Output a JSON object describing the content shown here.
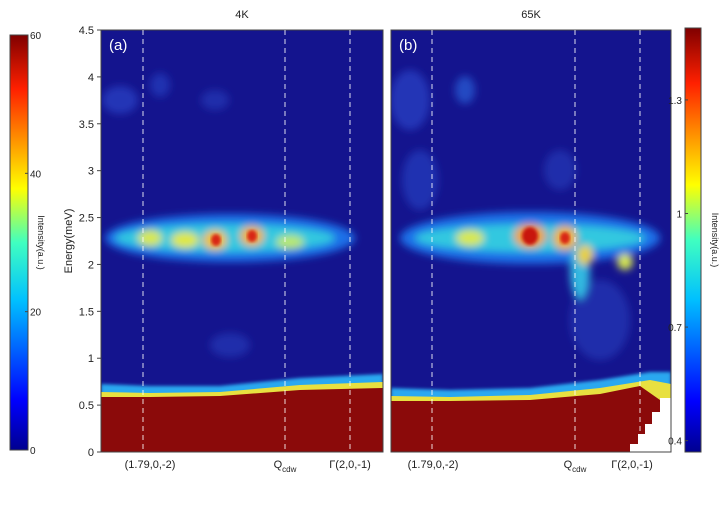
{
  "chart_data": [
    {
      "type": "heatmap",
      "title": "4K",
      "annotation": "(a)",
      "ylabel": "Energy(meV)",
      "ylim": [
        0,
        4.5
      ],
      "yticks": [
        0,
        0.5,
        1,
        1.5,
        2,
        2.5,
        3,
        3.5,
        4,
        4.5
      ],
      "x_labels": [
        "(1.79,0,-2)",
        {
          "main": "Q",
          "sub": "cdw"
        },
        "Γ(2,0,-1)"
      ],
      "colorbar": {
        "label": "Intensity(a.u.)",
        "lim": [
          0,
          60
        ],
        "ticks": [
          0,
          20,
          40,
          60
        ]
      }
    },
    {
      "type": "heatmap",
      "title": "65K",
      "annotation": "(b)",
      "ylim": [
        0,
        4.5
      ],
      "x_labels": [
        "(1.79,0,-2)",
        {
          "main": "Q",
          "sub": "cdw"
        },
        "Γ(2,0,-1)"
      ],
      "colorbar": {
        "label": "Intensity(a.u.)",
        "lim": [
          0.37,
          1.49
        ],
        "ticks": [
          0.4,
          0.7,
          1,
          1.3
        ]
      }
    }
  ]
}
